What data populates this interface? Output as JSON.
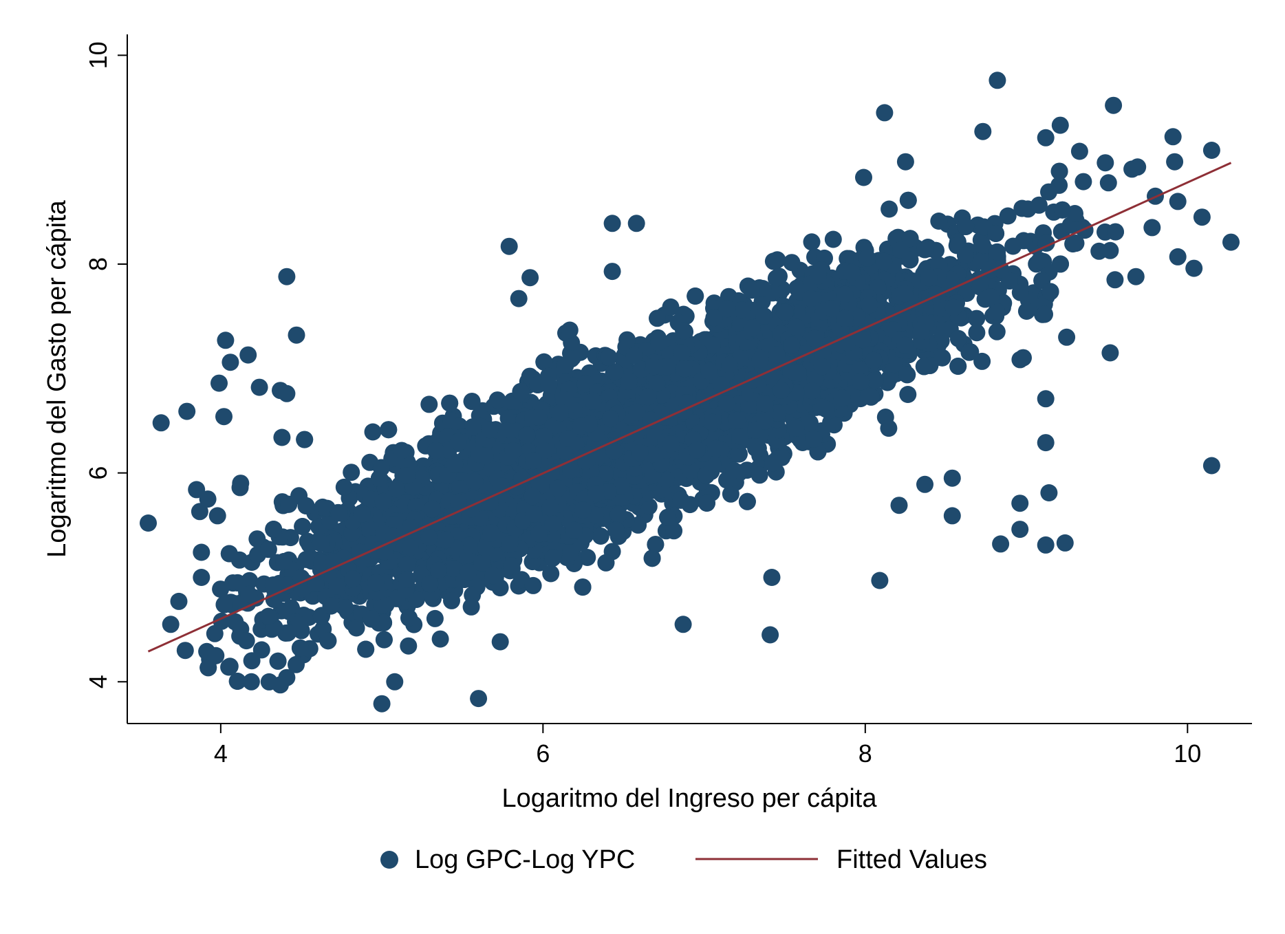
{
  "chart_data": {
    "type": "scatter",
    "title": "",
    "xlabel": "Logaritmo del Ingreso per cápita",
    "ylabel": "Logaritmo del Gasto per cápita",
    "xlim": [
      3.42,
      10.4
    ],
    "ylim": [
      3.6,
      10.2
    ],
    "x_ticks": [
      4,
      6,
      8,
      10
    ],
    "y_ticks": [
      4,
      6,
      8,
      10
    ],
    "x_tick_labels": [
      "4",
      "6",
      "8",
      "10"
    ],
    "y_tick_labels": [
      "4",
      "6",
      "8",
      "10"
    ],
    "grid": false,
    "legend_position": "bottom",
    "series": [
      {
        "name": "Log GPC-Log YPC",
        "kind": "scatter",
        "color": "#1F4A6D",
        "note_points": "representative outliers read from image; dense core drawn as point cloud around fit line",
        "points": [
          [
            3.55,
            5.52
          ],
          [
            3.63,
            6.48
          ],
          [
            3.69,
            4.55
          ],
          [
            3.74,
            4.77
          ],
          [
            3.78,
            4.3
          ],
          [
            3.79,
            6.59
          ],
          [
            3.85,
            5.84
          ],
          [
            3.87,
            5.63
          ],
          [
            3.88,
            5.24
          ],
          [
            3.88,
            5.0
          ],
          [
            3.92,
            5.75
          ],
          [
            3.97,
            4.25
          ],
          [
            3.98,
            5.59
          ],
          [
            3.99,
            6.86
          ],
          [
            4.02,
            6.54
          ],
          [
            4.03,
            7.27
          ],
          [
            4.05,
            4.14
          ],
          [
            4.06,
            7.06
          ],
          [
            4.12,
            5.86
          ],
          [
            4.17,
            7.13
          ],
          [
            4.19,
            4.0
          ],
          [
            4.24,
            6.82
          ],
          [
            4.37,
            6.79
          ],
          [
            4.41,
            7.88
          ],
          [
            4.41,
            4.04
          ],
          [
            4.47,
            7.32
          ],
          [
            4.37,
            3.97
          ],
          [
            4.38,
            6.34
          ],
          [
            4.41,
            6.76
          ],
          [
            5.0,
            3.79
          ],
          [
            5.08,
            4.0
          ],
          [
            5.6,
            3.84
          ],
          [
            5.79,
            8.17
          ],
          [
            5.85,
            7.67
          ],
          [
            5.92,
            7.87
          ],
          [
            6.43,
            8.39
          ],
          [
            6.58,
            8.39
          ],
          [
            6.43,
            7.93
          ],
          [
            6.87,
            4.55
          ],
          [
            7.41,
            4.45
          ],
          [
            7.42,
            5.0
          ],
          [
            8.09,
            4.97
          ],
          [
            8.12,
            9.45
          ],
          [
            7.99,
            8.83
          ],
          [
            8.25,
            8.98
          ],
          [
            8.73,
            9.27
          ],
          [
            8.82,
            9.76
          ],
          [
            9.12,
            9.21
          ],
          [
            9.21,
            9.33
          ],
          [
            9.33,
            9.08
          ],
          [
            9.54,
            9.52
          ],
          [
            9.49,
            8.97
          ],
          [
            9.69,
            8.93
          ],
          [
            9.91,
            9.22
          ],
          [
            9.92,
            8.98
          ],
          [
            10.15,
            9.09
          ],
          [
            9.94,
            8.6
          ],
          [
            10.09,
            8.45
          ],
          [
            10.27,
            8.21
          ],
          [
            10.04,
            7.96
          ],
          [
            9.94,
            8.07
          ],
          [
            9.68,
            7.88
          ],
          [
            9.55,
            7.85
          ],
          [
            9.52,
            8.13
          ],
          [
            9.52,
            7.15
          ],
          [
            9.12,
            6.71
          ],
          [
            9.12,
            6.29
          ],
          [
            9.14,
            5.81
          ],
          [
            9.12,
            5.31
          ],
          [
            9.24,
            5.33
          ],
          [
            8.96,
            5.46
          ],
          [
            8.96,
            5.71
          ],
          [
            8.84,
            5.32
          ],
          [
            8.54,
            5.59
          ],
          [
            8.54,
            5.95
          ],
          [
            8.37,
            5.89
          ],
          [
            8.21,
            5.69
          ],
          [
            10.15,
            6.07
          ],
          [
            9.8,
            8.65
          ],
          [
            9.78,
            8.35
          ],
          [
            9.25,
            7.3
          ]
        ]
      },
      {
        "name": "Fitted Values",
        "kind": "line",
        "color": "#8E2F36",
        "x": [
          3.55,
          10.27
        ],
        "y": [
          4.29,
          8.97
        ]
      }
    ]
  },
  "legend": {
    "items": [
      {
        "label": "Log GPC-Log YPC",
        "icon": "filled-circle-marker",
        "color": "#1F4A6D"
      },
      {
        "label": "Fitted Values",
        "icon": "line-marker",
        "color": "#8E2F36"
      }
    ]
  }
}
